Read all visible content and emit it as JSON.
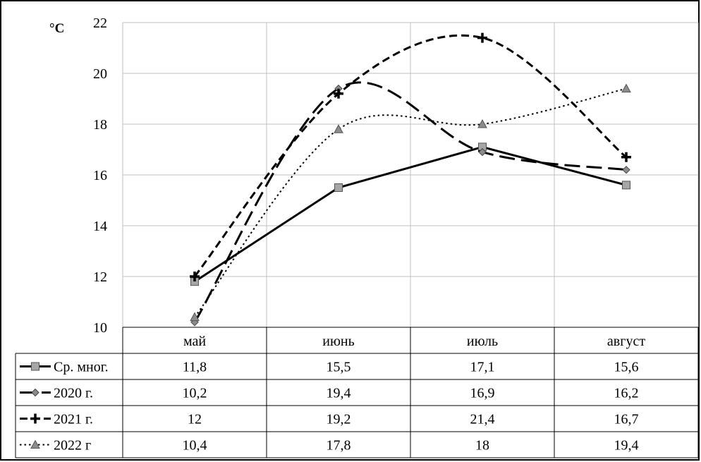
{
  "chart_data": {
    "type": "line",
    "ylabel": "°С",
    "ylim": [
      10,
      22
    ],
    "yticks": [
      10,
      12,
      14,
      16,
      18,
      20,
      22
    ],
    "grid": true,
    "categories": [
      "май",
      "июнь",
      "июль",
      "август"
    ],
    "series": [
      {
        "name": "Ср. мног.",
        "values": [
          11.8,
          15.5,
          17.1,
          15.6
        ],
        "labels": [
          "11,8",
          "15,5",
          "17,1",
          "15,6"
        ],
        "line": "solid",
        "marker": "square",
        "smooth": false,
        "color": "#000000",
        "marker_color": "#a6a6a6"
      },
      {
        "name": "2020 г.",
        "values": [
          10.2,
          19.4,
          16.9,
          16.2
        ],
        "labels": [
          "10,2",
          "19,4",
          "16,9",
          "16,2"
        ],
        "line": "long-dash",
        "marker": "diamond",
        "smooth": true,
        "color": "#000000",
        "marker_color": "#8c8c8c"
      },
      {
        "name": "2021 г.",
        "values": [
          12,
          19.2,
          21.4,
          16.7
        ],
        "labels": [
          "12",
          "19,2",
          "21,4",
          "16,7"
        ],
        "line": "dash",
        "marker": "plus",
        "smooth": true,
        "color": "#000000",
        "marker_color": "#000000"
      },
      {
        "name": "2022 г",
        "values": [
          10.4,
          17.8,
          18,
          19.4
        ],
        "labels": [
          "10,4",
          "17,8",
          "18",
          "19,4"
        ],
        "line": "dot",
        "marker": "triangle",
        "smooth": true,
        "color": "#000000",
        "marker_color": "#8c8c8c"
      }
    ]
  }
}
